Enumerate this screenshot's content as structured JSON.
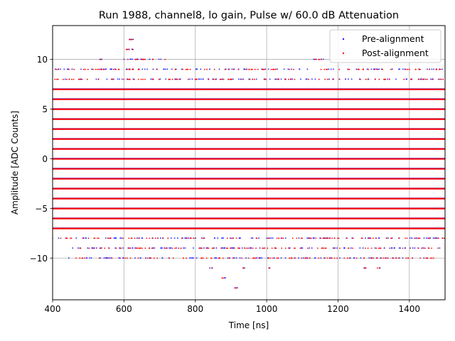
{
  "chart_data": {
    "type": "scatter",
    "title": "Run 1988, channel8, lo gain, Pulse w/ 60.0 dB Attenuation",
    "xlabel": "Time [ns]",
    "ylabel": "Amplitude [ADC Counts]",
    "xlim": [
      400,
      1500
    ],
    "ylim": [
      -14.2,
      13.4
    ],
    "xticks": [
      400,
      600,
      800,
      1000,
      1200,
      1400
    ],
    "yticks": [
      -10,
      -5,
      0,
      5,
      10
    ],
    "xtick_labels": [
      "400",
      "600",
      "800",
      "1000",
      "1200",
      "1400"
    ],
    "ytick_labels": [
      "−10",
      "−5",
      "0",
      "5",
      "10"
    ],
    "grid": true,
    "legend_position": "top-right",
    "series": [
      {
        "name": "Pre-alignment",
        "color": "#1f1fff",
        "marker": "dot",
        "continuous_levels": [
          -7,
          -6,
          -5,
          -4,
          -3,
          -2,
          -1,
          0,
          1,
          2,
          3,
          4,
          5,
          6,
          7
        ],
        "sparse_levels": [
          {
            "y": 12,
            "x_ranges": [
              [
                612,
                628
              ]
            ]
          },
          {
            "y": 11,
            "x_ranges": [
              [
                605,
                628
              ]
            ]
          },
          {
            "y": 10,
            "x_ranges": [
              [
                525,
                540
              ],
              [
                600,
                720
              ],
              [
                1130,
                1160
              ]
            ]
          },
          {
            "y": 9,
            "x_ranges": [
              [
                400,
                1500
              ]
            ]
          },
          {
            "y": 8,
            "x_ranges": [
              [
                400,
                1500
              ]
            ]
          },
          {
            "y": -8,
            "x_ranges": [
              [
                400,
                1500
              ]
            ]
          },
          {
            "y": -9,
            "x_ranges": [
              [
                440,
                1490
              ]
            ]
          },
          {
            "y": -10,
            "x_ranges": [
              [
                445,
                1470
              ]
            ]
          },
          {
            "y": -11,
            "x_ranges": [
              [
                835,
                850
              ],
              [
                930,
                945
              ],
              [
                1000,
                1010
              ],
              [
                1270,
                1280
              ],
              [
                1310,
                1320
              ]
            ]
          },
          {
            "y": -12,
            "x_ranges": [
              [
                875,
                885
              ]
            ]
          },
          {
            "y": -13,
            "x_ranges": [
              [
                910,
                918
              ]
            ]
          }
        ]
      },
      {
        "name": "Post-alignment",
        "color": "#ff0000",
        "marker": "dot",
        "continuous_levels": [
          -7,
          -6,
          -5,
          -4,
          -3,
          -2,
          -1,
          0,
          1,
          2,
          3,
          4,
          5,
          6,
          7
        ],
        "sparse_levels": [
          {
            "y": 12,
            "x_ranges": [
              [
                612,
                628
              ]
            ]
          },
          {
            "y": 11,
            "x_ranges": [
              [
                605,
                628
              ]
            ]
          },
          {
            "y": 10,
            "x_ranges": [
              [
                525,
                540
              ],
              [
                600,
                720
              ],
              [
                1130,
                1160
              ]
            ]
          },
          {
            "y": 9,
            "x_ranges": [
              [
                400,
                1500
              ]
            ]
          },
          {
            "y": 8,
            "x_ranges": [
              [
                400,
                1500
              ]
            ]
          },
          {
            "y": -8,
            "x_ranges": [
              [
                400,
                1500
              ]
            ]
          },
          {
            "y": -9,
            "x_ranges": [
              [
                440,
                1490
              ]
            ]
          },
          {
            "y": -10,
            "x_ranges": [
              [
                445,
                1470
              ]
            ]
          },
          {
            "y": -11,
            "x_ranges": [
              [
                835,
                850
              ],
              [
                930,
                945
              ],
              [
                1000,
                1010
              ],
              [
                1270,
                1280
              ],
              [
                1310,
                1320
              ]
            ]
          },
          {
            "y": -12,
            "x_ranges": [
              [
                875,
                885
              ]
            ]
          },
          {
            "y": -13,
            "x_ranges": [
              [
                910,
                918
              ]
            ]
          }
        ]
      }
    ]
  }
}
